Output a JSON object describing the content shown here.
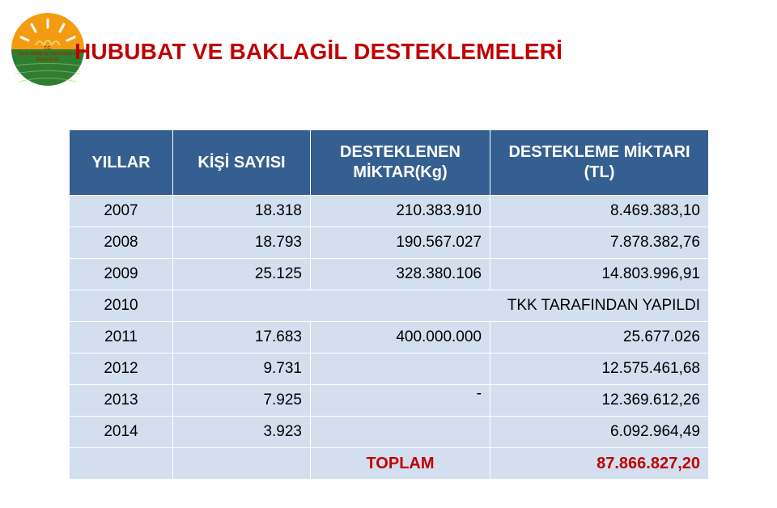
{
  "logo": {
    "top_text": "T.C.",
    "mid_text": "GIDA TARIM VE HAYVANCILIK",
    "bottom_text": "BAKANLIĞI",
    "top_color": "#f39c12",
    "bottom_color": "#2e7d32",
    "text_color": "#8b3a00"
  },
  "title": "HUBUBAT VE BAKLAGİL DESTEKLEMELERİ",
  "table": {
    "headers": [
      "YILLAR",
      "KİŞİ SAYISI",
      "DESTEKLENEN MİKTAR(Kg)",
      "DESTEKLEME MİKTARI (TL)"
    ],
    "rows": [
      {
        "year": "2007",
        "kisi": "18.318",
        "miktar_kg": "210.383.910",
        "miktar_tl": "8.469.383,10"
      },
      {
        "year": "2008",
        "kisi": "18.793",
        "miktar_kg": "190.567.027",
        "miktar_tl": "7.878.382,76"
      },
      {
        "year": "2009",
        "kisi": "25.125",
        "miktar_kg": "328.380.106",
        "miktar_tl": "14.803.996,91"
      },
      {
        "year": "2010",
        "merged": "TKK TARAFINDAN YAPILDI"
      },
      {
        "year": "2011",
        "kisi": "17.683",
        "miktar_kg": "400.000.000",
        "miktar_tl": "25.677.026"
      },
      {
        "year": "2012",
        "kisi": "9.731",
        "miktar_kg": "",
        "miktar_tl": "12.575.461,68"
      },
      {
        "year": "2013",
        "kisi": "7.925",
        "miktar_kg": "-",
        "miktar_tl": "12.369.612,26",
        "kg_dash": true
      },
      {
        "year": "2014",
        "kisi": "3.923",
        "miktar_kg": "",
        "miktar_tl": "6.092.964,49"
      }
    ],
    "total_label": "TOPLAM",
    "total_value": "87.866.827,20"
  },
  "styling": {
    "title_color": "#c00000",
    "header_bg": "#365f91",
    "header_text": "#ffffff",
    "cell_bg": "#d3dfee",
    "cell_text": "#000000",
    "total_color": "#c00000",
    "border_color": "#ffffff",
    "font_family": "Verdana",
    "title_fontsize": 28,
    "header_fontsize": 20,
    "cell_fontsize": 19
  }
}
